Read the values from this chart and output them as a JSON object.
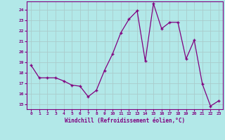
{
  "x": [
    0,
    1,
    2,
    3,
    4,
    5,
    6,
    7,
    8,
    9,
    10,
    11,
    12,
    13,
    14,
    15,
    16,
    17,
    18,
    19,
    20,
    21,
    22,
    23
  ],
  "y": [
    18.7,
    17.5,
    17.5,
    17.5,
    17.2,
    16.8,
    16.7,
    15.7,
    16.3,
    18.2,
    19.8,
    21.8,
    23.1,
    23.9,
    19.1,
    24.6,
    22.2,
    22.8,
    22.8,
    19.3,
    21.1,
    16.9,
    14.8,
    15.3
  ],
  "line_color": "#800080",
  "marker": "+",
  "marker_size": 3,
  "bg_color": "#b2e8e8",
  "grid_color": "#aacccc",
  "xlabel": "Windchill (Refroidissement éolien,°C)",
  "tick_color": "#800080",
  "yticks": [
    15,
    16,
    17,
    18,
    19,
    20,
    21,
    22,
    23,
    24
  ],
  "xticks": [
    0,
    1,
    2,
    3,
    4,
    5,
    6,
    7,
    8,
    9,
    10,
    11,
    12,
    13,
    14,
    15,
    16,
    17,
    18,
    19,
    20,
    21,
    22,
    23
  ],
  "ylim": [
    14.5,
    24.8
  ],
  "xlim": [
    -0.5,
    23.5
  ]
}
